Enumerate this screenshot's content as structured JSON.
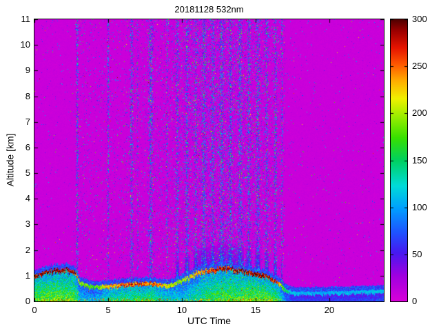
{
  "chart_data": {
    "type": "heatmap",
    "title": "20181128 532nm",
    "xlabel": "UTC Time",
    "ylabel": "Altitude [km]",
    "x_range": [
      0,
      23.7
    ],
    "y_range": [
      0,
      11
    ],
    "x_ticks": [
      0,
      5,
      10,
      15,
      20
    ],
    "y_ticks": [
      0,
      1,
      2,
      3,
      4,
      5,
      6,
      7,
      8,
      9,
      10,
      11
    ],
    "colorbar": {
      "range": [
        0,
        300
      ],
      "ticks": [
        0,
        50,
        100,
        150,
        200,
        250,
        300
      ]
    },
    "colormap_stops": [
      [
        0.0,
        "#d800d8"
      ],
      [
        0.09,
        "#a000e0"
      ],
      [
        0.17,
        "#4818f0"
      ],
      [
        0.24,
        "#2050ff"
      ],
      [
        0.33,
        "#00a0ff"
      ],
      [
        0.41,
        "#00dcd8"
      ],
      [
        0.5,
        "#00d060"
      ],
      [
        0.58,
        "#38e000"
      ],
      [
        0.66,
        "#a0ee00"
      ],
      [
        0.72,
        "#f0f000"
      ],
      [
        0.78,
        "#ffb000"
      ],
      [
        0.84,
        "#ff5a00"
      ],
      [
        0.9,
        "#e61400"
      ],
      [
        0.96,
        "#9c0000"
      ],
      [
        1.0,
        "#500000"
      ]
    ],
    "axis_color": "#000000",
    "background_color": "#ffffff",
    "features": {
      "background_value": 4,
      "noise_window": [
        2.8,
        17.0
      ],
      "broad_noise": [
        12.5,
        3.5,
        0.3
      ],
      "noise_columns": [
        [
          2.9,
          0.07,
          1.0
        ],
        [
          5.0,
          0.06,
          0.85
        ],
        [
          6.6,
          0.1,
          0.9
        ],
        [
          7.0,
          0.05,
          0.6
        ],
        [
          7.9,
          0.13,
          1.0
        ],
        [
          9.0,
          0.06,
          0.6
        ],
        [
          9.7,
          0.09,
          0.75
        ],
        [
          10.35,
          0.1,
          0.9
        ],
        [
          10.95,
          0.07,
          0.7
        ],
        [
          11.5,
          0.12,
          0.9
        ],
        [
          12.1,
          0.1,
          0.8
        ],
        [
          12.7,
          0.12,
          0.9
        ],
        [
          13.3,
          0.1,
          0.8
        ],
        [
          13.95,
          0.12,
          0.9
        ],
        [
          14.55,
          0.1,
          0.8
        ],
        [
          15.15,
          0.12,
          0.9
        ],
        [
          15.75,
          0.1,
          0.8
        ],
        [
          16.35,
          0.09,
          0.85
        ],
        [
          16.8,
          0.06,
          0.7
        ]
      ],
      "boundary_layer": [
        {
          "t": 0.0,
          "top": 1.0,
          "cap": 285
        },
        {
          "t": 0.8,
          "top": 1.2,
          "cap": 290
        },
        {
          "t": 2.0,
          "top": 1.3,
          "cap": 290
        },
        {
          "t": 2.7,
          "top": 1.25,
          "cap": 285
        },
        {
          "t": 3.1,
          "top": 0.75,
          "cap": 190
        },
        {
          "t": 4.0,
          "top": 0.6,
          "cap": 170
        },
        {
          "t": 5.0,
          "top": 0.65,
          "cap": 230
        },
        {
          "t": 6.0,
          "top": 0.7,
          "cap": 250
        },
        {
          "t": 7.0,
          "top": 0.75,
          "cap": 260
        },
        {
          "t": 8.0,
          "top": 0.75,
          "cap": 255
        },
        {
          "t": 9.0,
          "top": 0.65,
          "cap": 210
        },
        {
          "t": 10.0,
          "top": 0.85,
          "cap": 190
        },
        {
          "t": 11.0,
          "top": 1.15,
          "cap": 230
        },
        {
          "t": 12.0,
          "top": 1.3,
          "cap": 260
        },
        {
          "t": 13.0,
          "top": 1.35,
          "cap": 275
        },
        {
          "t": 14.0,
          "top": 1.25,
          "cap": 280
        },
        {
          "t": 15.0,
          "top": 1.15,
          "cap": 290
        },
        {
          "t": 15.8,
          "top": 1.0,
          "cap": 285
        },
        {
          "t": 16.5,
          "top": 0.8,
          "cap": 260
        },
        {
          "t": 17.0,
          "top": 0.5,
          "cap": 150
        },
        {
          "t": 17.5,
          "top": 0.38,
          "cap": 110
        },
        {
          "t": 20.0,
          "top": 0.38,
          "cap": 105
        },
        {
          "t": 22.0,
          "top": 0.42,
          "cap": 110
        },
        {
          "t": 23.7,
          "top": 0.45,
          "cap": 115
        }
      ]
    }
  }
}
